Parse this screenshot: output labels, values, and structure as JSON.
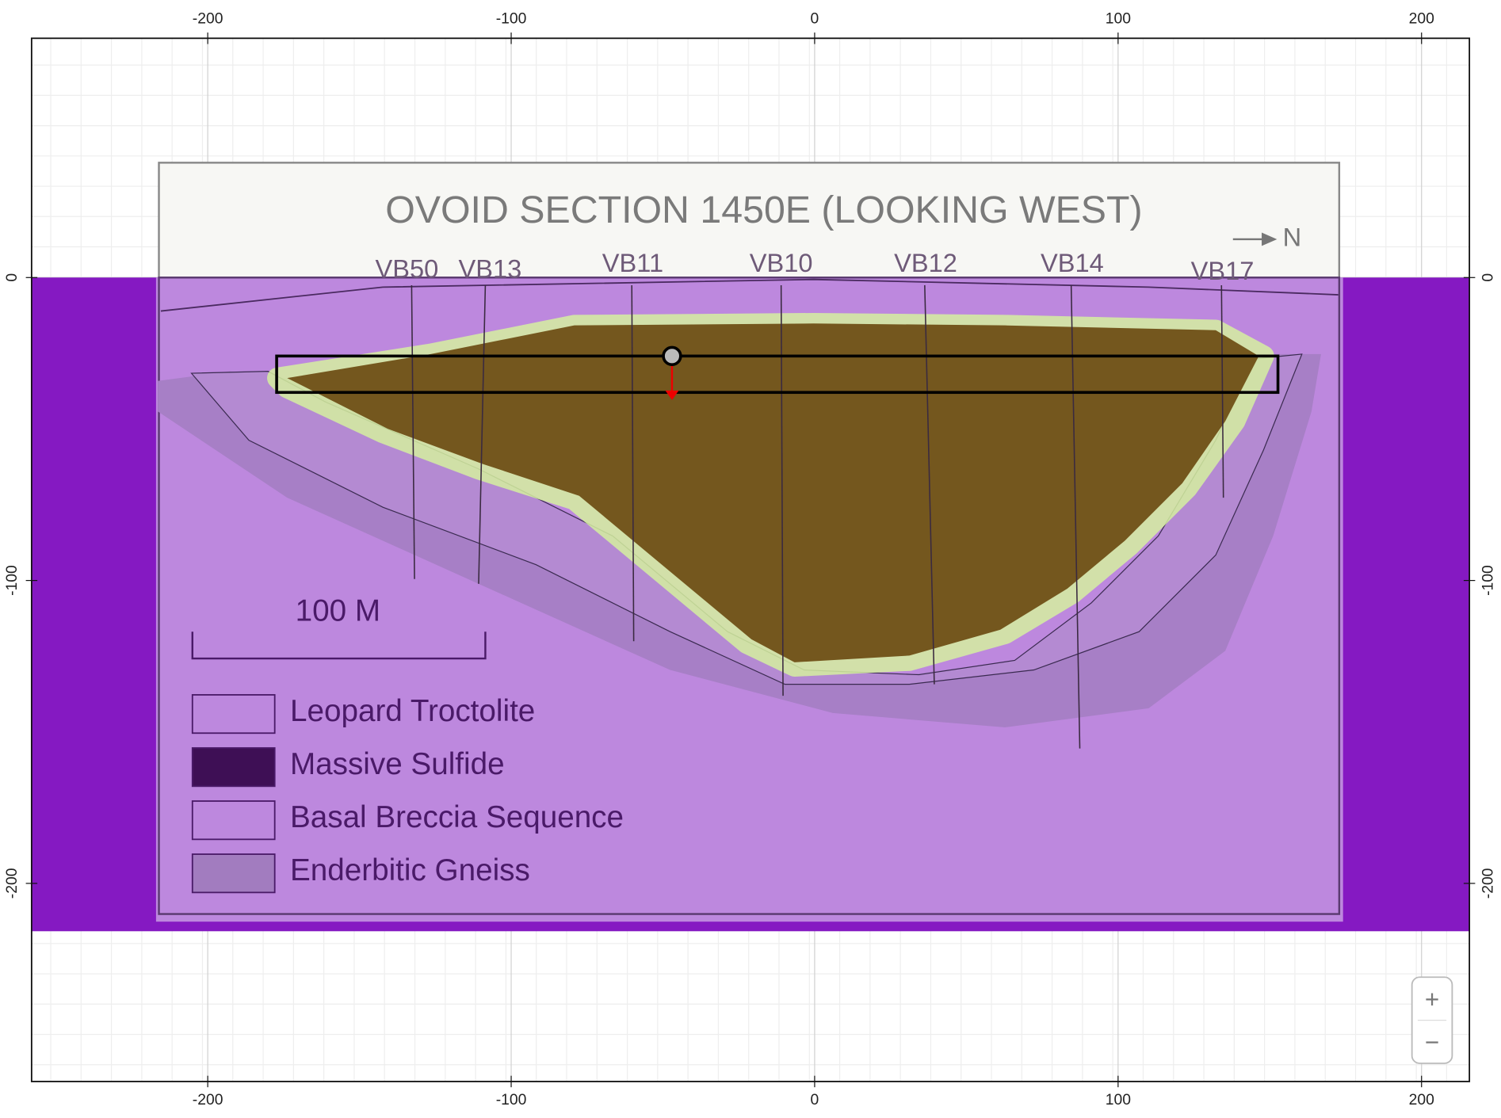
{
  "axes": {
    "x_ticks": [
      -200,
      -100,
      0,
      100,
      200
    ],
    "y_ticks": [
      0,
      -100,
      -200
    ]
  },
  "section": {
    "title": "OVOID SECTION 1450E (LOOKING WEST)",
    "north_label": "N",
    "drillholes": [
      "VB50",
      "VB13",
      "VB11",
      "VB10",
      "VB12",
      "VB14",
      "VB17"
    ],
    "scale_bar": "100 M",
    "legend": [
      "Leopard Troctolite",
      "Massive Sulfide",
      "Basal Breccia Sequence",
      "Enderbitic Gneiss"
    ]
  },
  "zoom": {
    "in": "+",
    "out": "−"
  }
}
